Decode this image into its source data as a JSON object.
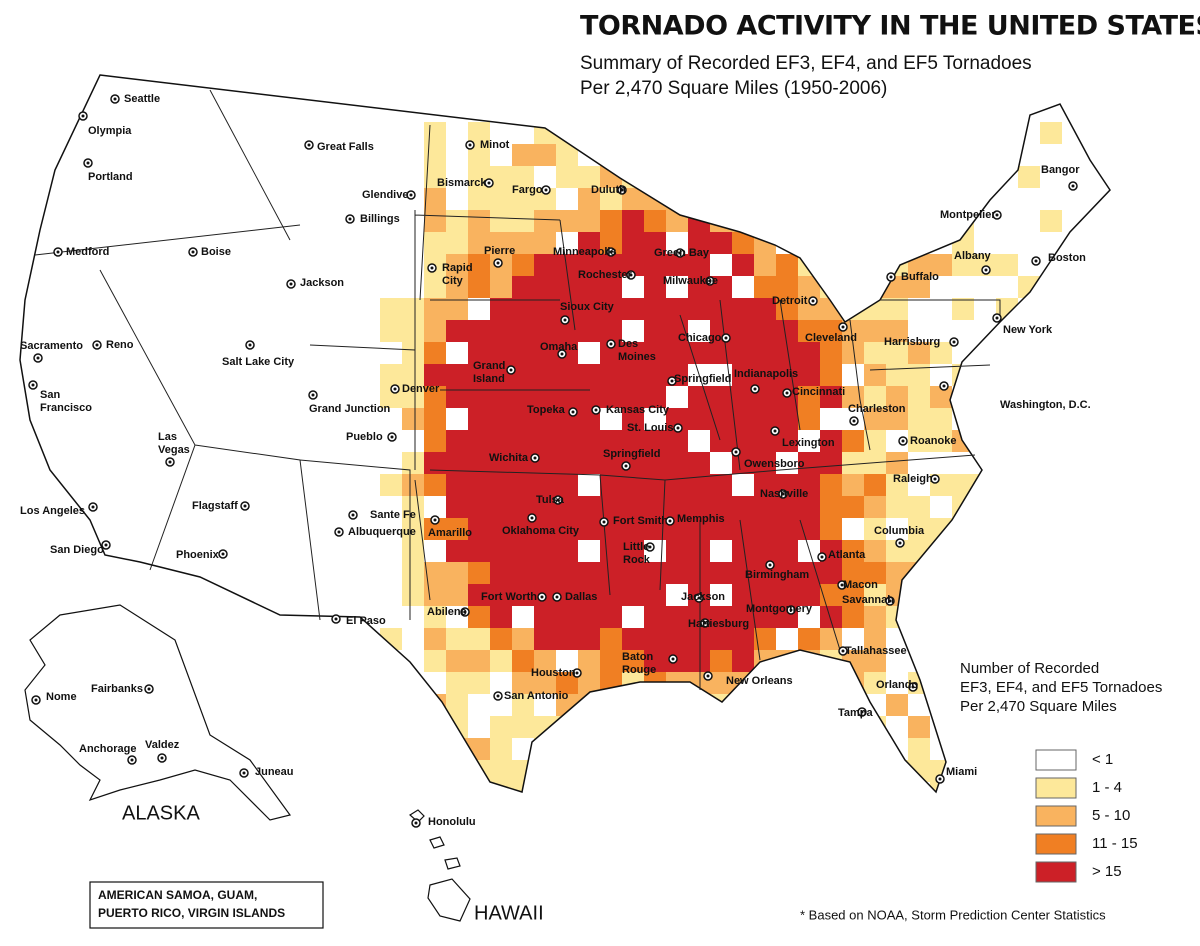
{
  "title": "TORNADO ACTIVITY IN THE UNITED STATES*",
  "subtitle": [
    "Summary  of Recorded EF3, EF4, and EF5 Tornadoes",
    "Per 2,470 Square Miles (1950-2006)"
  ],
  "legend": {
    "title": [
      "Number of Recorded",
      "EF3, EF4, and EF5 Tornadoes",
      "Per 2,470 Square Miles"
    ],
    "classes": [
      {
        "label": "< 1",
        "color": "#ffffff"
      },
      {
        "label": "1 - 4",
        "color": "#fde89a"
      },
      {
        "label": "5 - 10",
        "color": "#f9b35f"
      },
      {
        "label": "11 - 15",
        "color": "#f07f23"
      },
      {
        "label": "> 15",
        "color": "#cc2027"
      }
    ]
  },
  "regions": [
    "ALASKA",
    "HAWAII"
  ],
  "territories_box": [
    "AMERICAN SAMOA, GUAM,",
    "PUERTO RICO, VIRGIN ISLANDS"
  ],
  "footnote": "* Based on NOAA, Storm Prediction Center Statistics",
  "cities": [
    "Seattle",
    "Olympia",
    "Portland",
    "Medford",
    "Boise",
    "Sacramento",
    "Reno",
    [
      "San",
      "Francisco"
    ],
    [
      "Las",
      "Vegas"
    ],
    "Los Angeles",
    "San Diego",
    "Salt Lake City",
    "Grand Junction",
    "Flagstaff",
    "Phoenix",
    "Great Falls",
    "Glendive",
    "Billings",
    "Jackson",
    "Minot",
    "Bismarck",
    "Fargo",
    "Duluth",
    "Pierre",
    [
      "Rapid",
      "City"
    ],
    "Denver",
    "Pueblo",
    "Sante Fe",
    "Albuquerque",
    "Amarillo",
    "El Paso",
    "Minneapolis",
    "Rochester",
    "Green Bay",
    "Milwaukee",
    "Sioux City",
    "Omaha",
    [
      "Des",
      "Moines"
    ],
    [
      "Grand",
      "Island"
    ],
    "Topeka",
    "Kansas City",
    "Wichita",
    "St. Louis",
    "Springfield",
    "Springfield",
    "Chicago",
    "Detroit",
    "Indianapolis",
    "Cincinnati",
    "Cleveland",
    "Charleston",
    "Lexington",
    "Owensboro",
    "Nashville",
    "Tulsa",
    "Oklahoma City",
    "Fort Smith",
    "Memphis",
    [
      "Little",
      "Rock"
    ],
    "Fort Worth",
    "Dallas",
    "Abilene",
    "Jackson",
    "Hattiesburg",
    "Birmingham",
    "Atlanta",
    "Montgomery",
    "Macon",
    "Savannah",
    "Columbia",
    "Raleigh",
    "Roanoke",
    "Washington, D.C.",
    "Harrisburg",
    "Buffalo",
    "Albany",
    "Montpelier",
    "Bangor",
    "Boston",
    "New York",
    "Houston",
    "San Antonio",
    [
      "Baton",
      "Rouge"
    ],
    "New Orleans",
    "Tallahassee",
    "Orlando",
    "Tampa",
    "Miami",
    "Nome",
    "Fairbanks",
    "Anchorage",
    "Valdez",
    "Juneau",
    "Honolulu"
  ]
}
